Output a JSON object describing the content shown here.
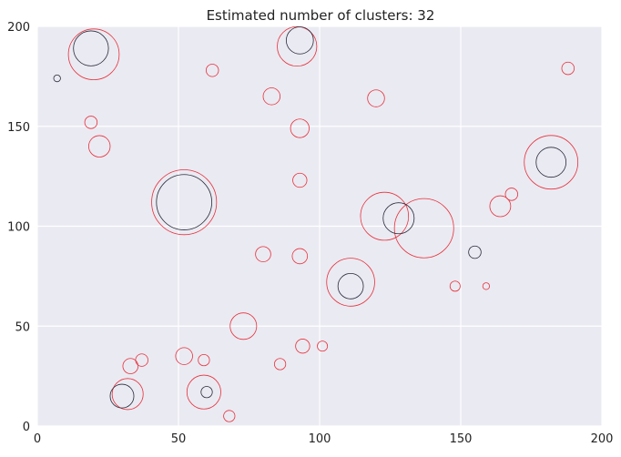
{
  "chart_data": {
    "type": "scatter",
    "title": "Estimated number of clusters: 32",
    "xlabel": "",
    "ylabel": "",
    "xlim": [
      0,
      200
    ],
    "ylim": [
      0,
      200
    ],
    "xticks": [
      0,
      50,
      100,
      150,
      200
    ],
    "yticks": [
      0,
      50,
      100,
      150,
      200
    ],
    "grid": true,
    "colors": {
      "background": "#eaeaf2",
      "grid": "#ffffff",
      "red": "#e8303a",
      "dark": "#2a2a3a"
    },
    "series": [
      {
        "color": "red",
        "points": [
          {
            "x": 20,
            "y": 186,
            "r": 9
          },
          {
            "x": 92,
            "y": 190,
            "r": 7
          },
          {
            "x": 62,
            "y": 178,
            "r": 2.2
          },
          {
            "x": 188,
            "y": 179,
            "r": 2.2
          },
          {
            "x": 83,
            "y": 165,
            "r": 3
          },
          {
            "x": 120,
            "y": 164,
            "r": 3
          },
          {
            "x": 19,
            "y": 152,
            "r": 2.2
          },
          {
            "x": 93,
            "y": 149,
            "r": 3.3
          },
          {
            "x": 22,
            "y": 140,
            "r": 3.8
          },
          {
            "x": 182,
            "y": 132,
            "r": 9.5
          },
          {
            "x": 93,
            "y": 123,
            "r": 2.5
          },
          {
            "x": 168,
            "y": 116,
            "r": 2.2
          },
          {
            "x": 52,
            "y": 112,
            "r": 11.5
          },
          {
            "x": 164,
            "y": 110,
            "r": 3.7
          },
          {
            "x": 123,
            "y": 105,
            "r": 8.5
          },
          {
            "x": 137,
            "y": 99,
            "r": 10.5
          },
          {
            "x": 80,
            "y": 86,
            "r": 2.7
          },
          {
            "x": 93,
            "y": 85,
            "r": 2.7
          },
          {
            "x": 111,
            "y": 72,
            "r": 8.5
          },
          {
            "x": 148,
            "y": 70,
            "r": 1.8
          },
          {
            "x": 159,
            "y": 70,
            "r": 1.2
          },
          {
            "x": 73,
            "y": 50,
            "r": 4.7
          },
          {
            "x": 94,
            "y": 40,
            "r": 2.5
          },
          {
            "x": 101,
            "y": 40,
            "r": 1.8
          },
          {
            "x": 52,
            "y": 35,
            "r": 3
          },
          {
            "x": 37,
            "y": 33,
            "r": 2.2
          },
          {
            "x": 59,
            "y": 33,
            "r": 2
          },
          {
            "x": 33,
            "y": 30,
            "r": 2.7
          },
          {
            "x": 86,
            "y": 31,
            "r": 2
          },
          {
            "x": 59,
            "y": 17,
            "r": 6
          },
          {
            "x": 32,
            "y": 16,
            "r": 5.5
          },
          {
            "x": 68,
            "y": 5,
            "r": 2
          }
        ]
      },
      {
        "color": "dark",
        "points": [
          {
            "x": 19,
            "y": 189,
            "r": 6.2
          },
          {
            "x": 93,
            "y": 193,
            "r": 4.8
          },
          {
            "x": 7,
            "y": 174,
            "r": 1.2
          },
          {
            "x": 182,
            "y": 132,
            "r": 5.3
          },
          {
            "x": 52,
            "y": 112,
            "r": 9.8
          },
          {
            "x": 128,
            "y": 104,
            "r": 5.5
          },
          {
            "x": 155,
            "y": 87,
            "r": 2.2
          },
          {
            "x": 111,
            "y": 70,
            "r": 4.5
          },
          {
            "x": 60,
            "y": 17,
            "r": 2
          },
          {
            "x": 30,
            "y": 15,
            "r": 4.2
          }
        ]
      }
    ]
  }
}
